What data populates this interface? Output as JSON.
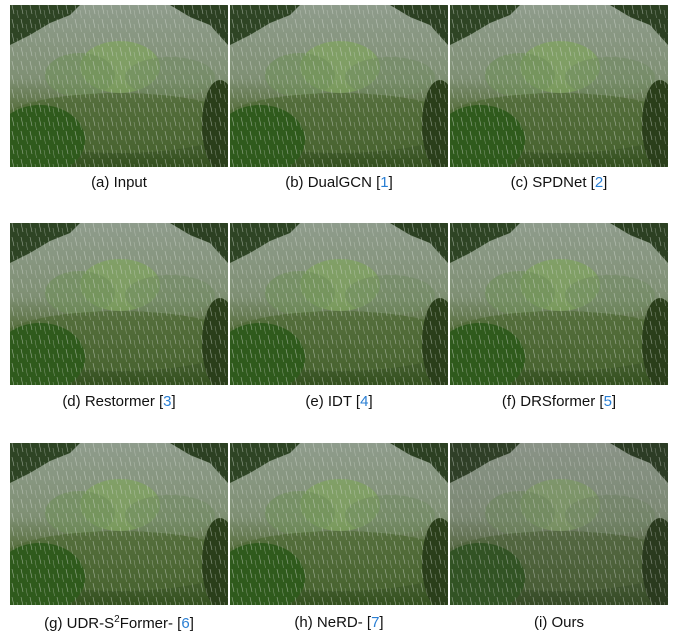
{
  "panels": [
    {
      "caption_parts": [
        {
          "text": "(a) Input"
        }
      ]
    },
    {
      "caption_parts": [
        {
          "text": "(b) DualGCN ["
        },
        {
          "text": "1",
          "link": true
        },
        {
          "text": "]"
        }
      ]
    },
    {
      "caption_parts": [
        {
          "text": "(c) SPDNet ["
        },
        {
          "text": "2",
          "link": true
        },
        {
          "text": "]"
        }
      ]
    },
    {
      "caption_parts": [
        {
          "text": "(d) Restormer ["
        },
        {
          "text": "3",
          "link": true
        },
        {
          "text": "]"
        }
      ]
    },
    {
      "caption_parts": [
        {
          "text": "(e) IDT ["
        },
        {
          "text": "4",
          "link": true
        },
        {
          "text": "]"
        }
      ]
    },
    {
      "caption_parts": [
        {
          "text": "(f) DRSformer ["
        },
        {
          "text": "5",
          "link": true
        },
        {
          "text": "]"
        }
      ]
    },
    {
      "caption_parts": [
        {
          "text": "(g) UDR-S"
        },
        {
          "text": "2",
          "sup": true
        },
        {
          "text": "Former- ["
        },
        {
          "text": "6",
          "link": true
        },
        {
          "text": "]"
        }
      ]
    },
    {
      "caption_parts": [
        {
          "text": "(h) NeRD- ["
        },
        {
          "text": "7",
          "link": true
        },
        {
          "text": "]"
        }
      ]
    },
    {
      "caption_parts": [
        {
          "text": "(i) Ours"
        }
      ]
    }
  ]
}
